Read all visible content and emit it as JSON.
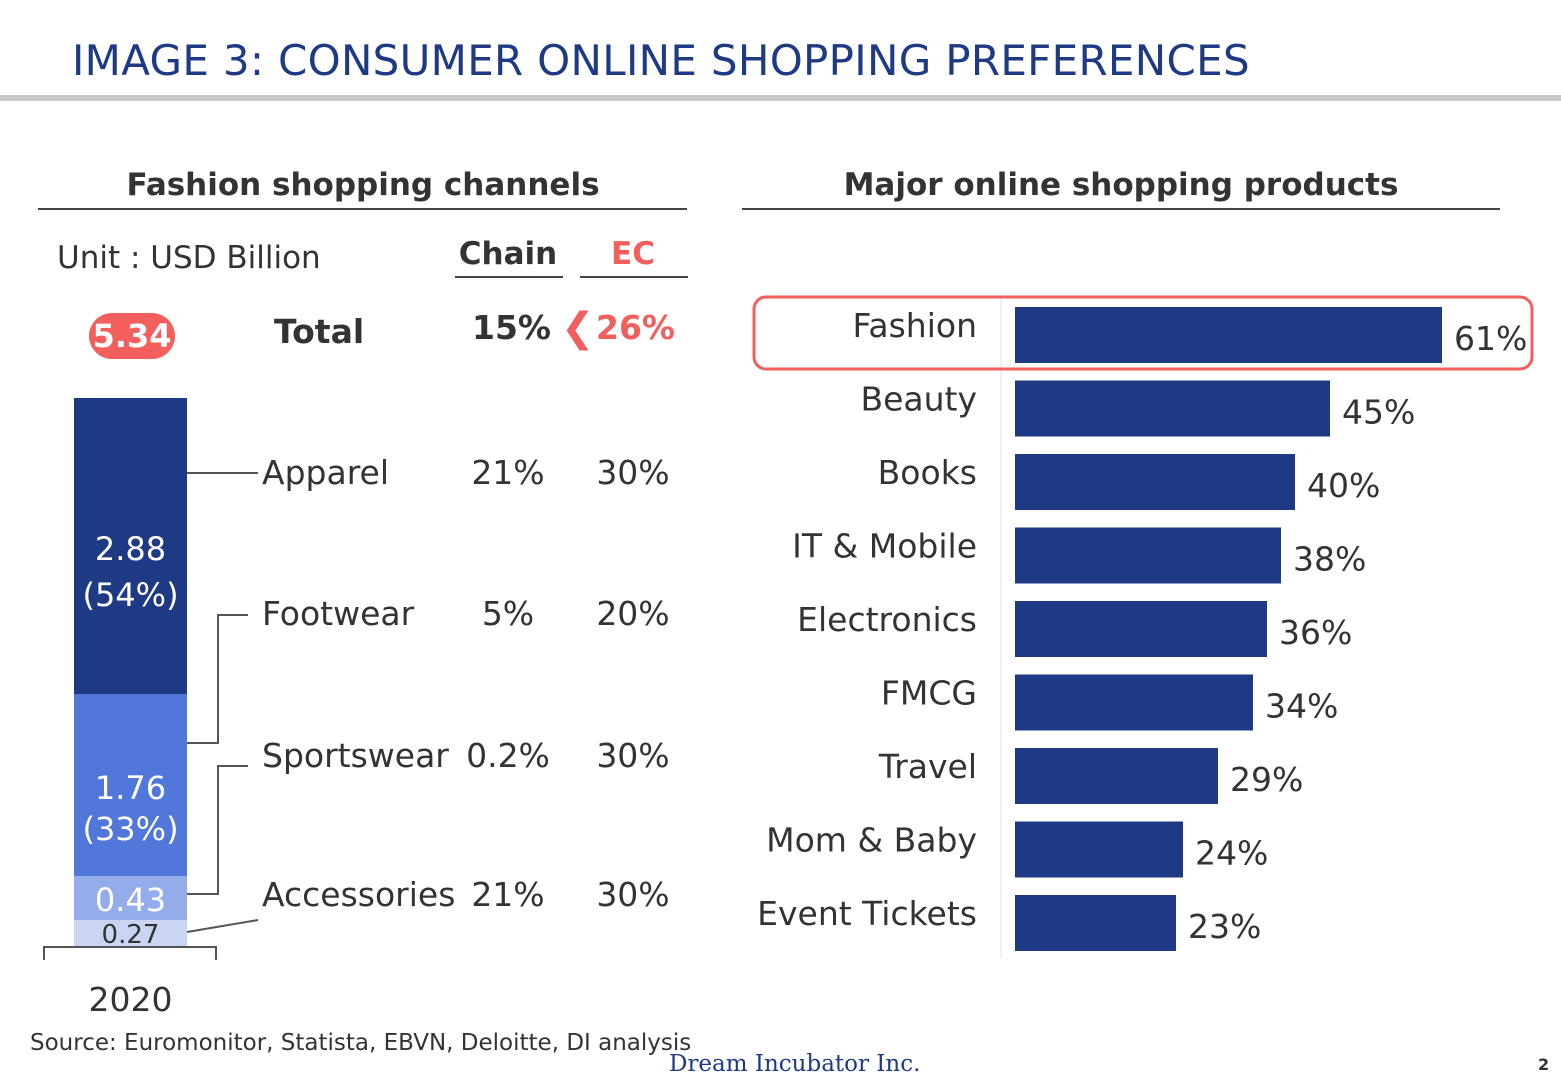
{
  "title": "IMAGE 3: CONSUMER ONLINE SHOPPING PREFERENCES",
  "left_panel": {
    "title": "Fashion shopping channels",
    "unit": "Unit : USD Billion",
    "columns": {
      "chain": "Chain",
      "ec": "EC"
    },
    "total": {
      "value": "5.34",
      "label": "Total",
      "chain": "15%",
      "chevron": "❮",
      "ec": "26%"
    },
    "categories": [
      {
        "name": "Apparel",
        "chain": "21%",
        "ec": "30%"
      },
      {
        "name": "Footwear",
        "chain": "5%",
        "ec": "20%"
      },
      {
        "name": "Sportswear",
        "chain": "0.2%",
        "ec": "30%"
      },
      {
        "name": "Accessories",
        "chain": "21%",
        "ec": "30%"
      }
    ],
    "year": "2020",
    "colors": {
      "accent": "#f25f5c",
      "apparel": "#1e3a85",
      "footwear": "#5077d9",
      "sportswear": "#94ace9",
      "accessories": "#c9d5f3"
    }
  },
  "right_panel": {
    "title": "Major online shopping products",
    "highlight_color": "#f25f5c",
    "bar_color": "#1e3a85"
  },
  "chart_data": [
    {
      "type": "bar",
      "orientation": "vertical-stacked",
      "categories": [
        "2020"
      ],
      "series": [
        {
          "name": "Apparel",
          "values": [
            2.88
          ],
          "label": "2.88",
          "share": "(54%)"
        },
        {
          "name": "Footwear",
          "values": [
            1.76
          ],
          "label": "1.76",
          "share": "(33%)"
        },
        {
          "name": "Sportswear",
          "values": [
            0.43
          ],
          "label": "0.43"
        },
        {
          "name": "Accessories",
          "values": [
            0.27
          ],
          "label": "0.27"
        }
      ],
      "total": 5.34
    },
    {
      "type": "bar",
      "orientation": "horizontal",
      "categories": [
        "Fashion",
        "Beauty",
        "Books",
        "IT & Mobile",
        "Electronics",
        "FMCG",
        "Travel",
        "Mom & Baby",
        "Event Tickets"
      ],
      "values": [
        61,
        45,
        40,
        38,
        36,
        34,
        29,
        24,
        23
      ],
      "value_labels": [
        "61%",
        "45%",
        "40%",
        "38%",
        "36%",
        "34%",
        "29%",
        "24%",
        "23%"
      ],
      "highlighted": "Fashion",
      "xlim": [
        0,
        100
      ]
    }
  ],
  "footer": {
    "source": "Source: Euromonitor, Statista, EBVN, Deloitte, DI analysis",
    "company": "Dream Incubator Inc.",
    "page": "2"
  }
}
